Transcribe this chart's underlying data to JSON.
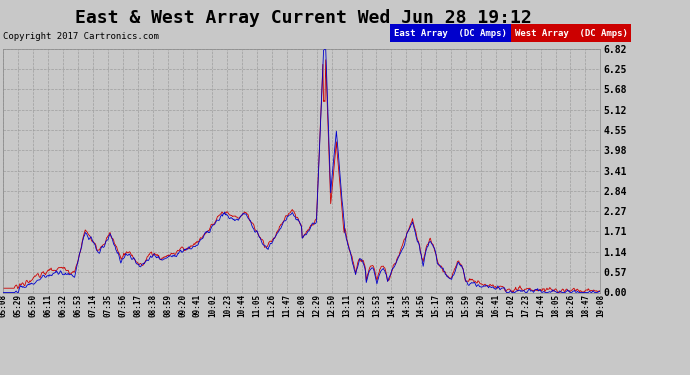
{
  "title": "East & West Array Current Wed Jun 28 19:12",
  "copyright": "Copyright 2017 Cartronics.com",
  "legend_east": "East Array  (DC Amps)",
  "legend_west": "West Array  (DC Amps)",
  "east_color": "#0000cc",
  "west_color": "#cc0000",
  "legend_east_bg": "#0000cc",
  "legend_west_bg": "#cc0000",
  "background_color": "#c8c8c8",
  "plot_bg_color": "#c8c8c8",
  "yticks": [
    0.0,
    0.57,
    1.14,
    1.71,
    2.27,
    2.84,
    3.41,
    3.98,
    4.55,
    5.12,
    5.68,
    6.25,
    6.82
  ],
  "ylim": [
    0.0,
    6.82
  ],
  "title_fontsize": 13,
  "grid_color": "#999999",
  "x_tick_labels": [
    "05:08",
    "05:29",
    "05:50",
    "06:11",
    "06:32",
    "06:53",
    "07:14",
    "07:35",
    "07:56",
    "08:17",
    "08:38",
    "08:59",
    "09:20",
    "09:41",
    "10:02",
    "10:23",
    "10:44",
    "11:05",
    "11:26",
    "11:47",
    "12:08",
    "12:29",
    "12:50",
    "13:11",
    "13:32",
    "13:53",
    "14:14",
    "14:35",
    "14:56",
    "15:17",
    "15:38",
    "15:59",
    "16:20",
    "16:41",
    "17:02",
    "17:23",
    "17:44",
    "18:05",
    "18:26",
    "18:47",
    "19:08"
  ]
}
